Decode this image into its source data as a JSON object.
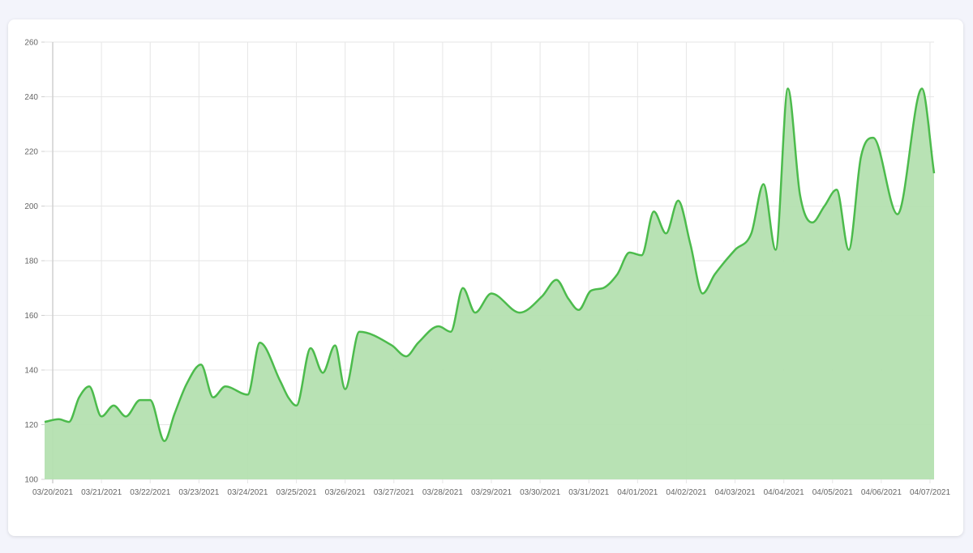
{
  "chart_data": {
    "type": "area",
    "title": "",
    "xlabel": "",
    "ylabel": "",
    "ylim": [
      100,
      260
    ],
    "y_ticks": [
      "260",
      "240",
      "220",
      "200",
      "180",
      "160",
      "140",
      "120",
      "100"
    ],
    "x_range": [
      "03/20/2021",
      "04/07/2021"
    ],
    "x_ticks": [
      "03/20/2021",
      "03/21/2021",
      "03/22/2021",
      "03/23/2021",
      "03/24/2021",
      "03/25/2021",
      "03/26/2021",
      "03/27/2021",
      "03/28/2021",
      "03/29/2021",
      "03/30/2021",
      "03/31/2021",
      "04/01/2021",
      "04/02/2021",
      "04/03/2021",
      "04/04/2021",
      "04/05/2021",
      "04/06/2021",
      "04/07/2021"
    ],
    "grid": true,
    "color": "#4cbb4c",
    "fill_color": "#b4e0b0",
    "series": [
      {
        "points": [
          [
            "03/19/2021 20:00",
            121
          ],
          [
            "03/20/2021 03:00",
            122
          ],
          [
            "03/20/2021 08:00",
            121
          ],
          [
            "03/20/2021 13:00",
            130
          ],
          [
            "03/20/2021 18:00",
            134
          ],
          [
            "03/21/2021 00:00",
            123
          ],
          [
            "03/21/2021 06:00",
            127
          ],
          [
            "03/21/2021 12:00",
            123
          ],
          [
            "03/21/2021 19:00",
            129
          ],
          [
            "03/22/2021 00:00",
            129
          ],
          [
            "03/22/2021 07:00",
            114
          ],
          [
            "03/22/2021 12:00",
            124
          ],
          [
            "03/22/2021 18:00",
            135
          ],
          [
            "03/23/2021 01:00",
            142
          ],
          [
            "03/23/2021 07:00",
            130
          ],
          [
            "03/23/2021 13:00",
            134
          ],
          [
            "03/24/2021 00:00",
            131
          ],
          [
            "03/24/2021 06:00",
            150
          ],
          [
            "03/24/2021 16:00",
            136
          ],
          [
            "03/24/2021 20:00",
            130
          ],
          [
            "03/25/2021 00:00",
            127
          ],
          [
            "03/25/2021 07:00",
            148
          ],
          [
            "03/25/2021 13:00",
            139
          ],
          [
            "03/25/2021 19:00",
            149
          ],
          [
            "03/26/2021 00:00",
            133
          ],
          [
            "03/26/2021 07:00",
            154
          ],
          [
            "03/26/2021 23:00",
            149
          ],
          [
            "03/27/2021 06:00",
            145
          ],
          [
            "03/27/2021 12:00",
            150
          ],
          [
            "03/27/2021 22:00",
            156
          ],
          [
            "03/28/2021 04:00",
            154
          ],
          [
            "03/28/2021 10:00",
            170
          ],
          [
            "03/28/2021 16:00",
            161
          ],
          [
            "03/29/2021 00:00",
            168
          ],
          [
            "03/29/2021 14:00",
            161
          ],
          [
            "03/30/2021 01:00",
            167
          ],
          [
            "03/30/2021 08:00",
            173
          ],
          [
            "03/30/2021 14:00",
            166
          ],
          [
            "03/30/2021 19:00",
            162
          ],
          [
            "03/31/2021 01:00",
            169
          ],
          [
            "03/31/2021 07:00",
            170
          ],
          [
            "03/31/2021 14:00",
            175
          ],
          [
            "03/31/2021 20:00",
            183
          ],
          [
            "04/01/2021 02:00",
            182
          ],
          [
            "04/01/2021 08:00",
            198
          ],
          [
            "04/01/2021 14:00",
            190
          ],
          [
            "04/01/2021 20:00",
            202
          ],
          [
            "04/02/2021 02:00",
            186
          ],
          [
            "04/02/2021 08:00",
            168
          ],
          [
            "04/02/2021 14:00",
            175
          ],
          [
            "04/03/2021 00:00",
            184
          ],
          [
            "04/03/2021 08:00",
            190
          ],
          [
            "04/03/2021 14:00",
            208
          ],
          [
            "04/03/2021 20:00",
            184
          ],
          [
            "04/04/2021 02:00",
            243
          ],
          [
            "04/04/2021 08:00",
            204
          ],
          [
            "04/04/2021 14:00",
            194
          ],
          [
            "04/04/2021 20:00",
            200
          ],
          [
            "04/05/2021 02:00",
            206
          ],
          [
            "04/05/2021 08:00",
            184
          ],
          [
            "04/05/2021 14:00",
            218
          ],
          [
            "04/05/2021 20:00",
            225
          ],
          [
            "04/06/2021 08:00",
            197
          ],
          [
            "04/06/2021 20:00",
            243
          ],
          [
            "04/07/2021 02:00",
            212
          ]
        ]
      }
    ]
  }
}
